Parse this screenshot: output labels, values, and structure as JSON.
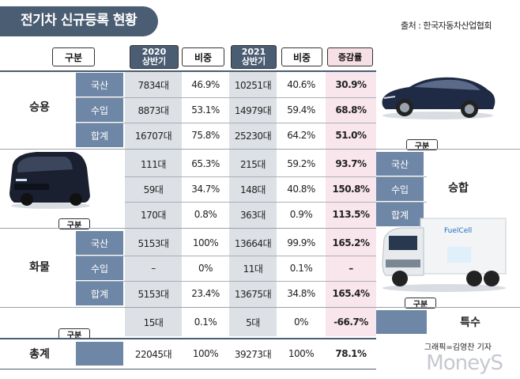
{
  "title": "전기차 신규등록 현황",
  "source": "출처 : 한국자동차산업협회",
  "headers": {
    "category": "구분",
    "h2020_year": "2020",
    "h2020_half": "상반기",
    "share1": "비중",
    "h2021_year": "2021",
    "h2021_half": "상반기",
    "share2": "비중",
    "growth": "증감률"
  },
  "groups": {
    "passenger": {
      "label": "승용",
      "rows": [
        {
          "cat": "국산",
          "v2020": "7834대",
          "s2020": "46.9%",
          "v2021": "10251대",
          "s2021": "40.6%",
          "growth": "30.9%"
        },
        {
          "cat": "수입",
          "v2020": "8873대",
          "s2020": "53.1%",
          "v2021": "14979대",
          "s2021": "59.4%",
          "growth": "68.8%"
        },
        {
          "cat": "합계",
          "v2020": "16707대",
          "s2020": "75.8%",
          "v2021": "25230대",
          "s2021": "64.2%",
          "growth": "51.0%"
        }
      ]
    },
    "van": {
      "label": "승합",
      "header": "구분",
      "rows": [
        {
          "cat": "국산",
          "v2020": "111대",
          "s2020": "65.3%",
          "v2021": "215대",
          "s2021": "59.2%",
          "growth": "93.7%"
        },
        {
          "cat": "수입",
          "v2020": "59대",
          "s2020": "34.7%",
          "v2021": "148대",
          "s2021": "40.8%",
          "growth": "150.8%"
        },
        {
          "cat": "합계",
          "v2020": "170대",
          "s2020": "0.8%",
          "v2021": "363대",
          "s2021": "0.9%",
          "growth": "113.5%"
        }
      ]
    },
    "truck": {
      "label": "화물",
      "header": "구분",
      "rows": [
        {
          "cat": "국산",
          "v2020": "5153대",
          "s2020": "100%",
          "v2021": "13664대",
          "s2021": "99.9%",
          "growth": "165.2%"
        },
        {
          "cat": "수입",
          "v2020": "–",
          "s2020": "0%",
          "v2021": "11대",
          "s2021": "0.1%",
          "growth": "–"
        },
        {
          "cat": "합계",
          "v2020": "5153대",
          "s2020": "23.4%",
          "v2021": "13675대",
          "s2021": "34.8%",
          "growth": "165.4%"
        }
      ]
    },
    "special": {
      "label": "특수",
      "header": "구분",
      "row": {
        "v2020": "15대",
        "s2020": "0.1%",
        "v2021": "5대",
        "s2021": "0%",
        "growth": "-66.7%"
      }
    },
    "total": {
      "label": "총계",
      "header": "구분",
      "row": {
        "v2020": "22045대",
        "s2020": "100%",
        "v2021": "39273대",
        "s2021": "100%",
        "growth": "78.1%"
      }
    }
  },
  "truck_brand_text": "FuelCell",
  "credit": "그래픽=김영찬 기자",
  "logo": "MoneyS",
  "colors": {
    "header": "#4b5d73",
    "category": "#6f87a6",
    "gray_col": "#dde1e6",
    "pink_col": "#f9e6ec"
  }
}
